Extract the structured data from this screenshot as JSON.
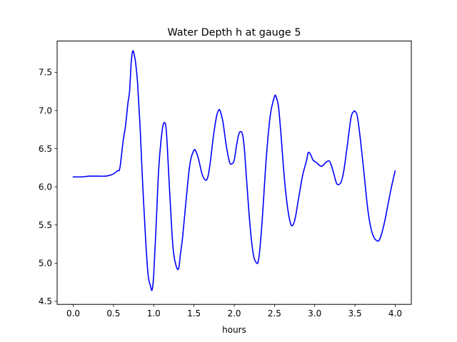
{
  "chart_data": {
    "type": "line",
    "title": "Water Depth h at gauge 5",
    "xlabel": "hours",
    "ylabel": "",
    "xlim": [
      -0.2,
      4.2
    ],
    "ylim": [
      4.46,
      7.91
    ],
    "xticks": [
      0.0,
      0.5,
      1.0,
      1.5,
      2.0,
      2.5,
      3.0,
      3.5,
      4.0
    ],
    "xtick_labels": [
      "0.0",
      "0.5",
      "1.0",
      "1.5",
      "2.0",
      "2.5",
      "3.0",
      "3.5",
      "4.0"
    ],
    "yticks": [
      4.5,
      5.0,
      5.5,
      6.0,
      6.5,
      7.0,
      7.5
    ],
    "ytick_labels": [
      "4.5",
      "5.0",
      "5.5",
      "6.0",
      "6.5",
      "7.0",
      "7.5"
    ],
    "grid": false,
    "series": [
      {
        "color": "#0000ff",
        "x": [
          0.0,
          0.1,
          0.2,
          0.3,
          0.4,
          0.45,
          0.5,
          0.55,
          0.58,
          0.62,
          0.65,
          0.68,
          0.7,
          0.72,
          0.74,
          0.76,
          0.78,
          0.8,
          0.83,
          0.86,
          0.9,
          0.93,
          0.96,
          0.98,
          1.0,
          1.03,
          1.06,
          1.09,
          1.12,
          1.15,
          1.17,
          1.2,
          1.24,
          1.28,
          1.31,
          1.33,
          1.36,
          1.4,
          1.45,
          1.5,
          1.53,
          1.56,
          1.6,
          1.64,
          1.67,
          1.7,
          1.74,
          1.78,
          1.81,
          1.83,
          1.86,
          1.9,
          1.94,
          1.97,
          2.0,
          2.03,
          2.06,
          2.09,
          2.11,
          2.13,
          2.16,
          2.2,
          2.24,
          2.28,
          2.3,
          2.32,
          2.35,
          2.4,
          2.45,
          2.5,
          2.52,
          2.55,
          2.58,
          2.62,
          2.66,
          2.7,
          2.73,
          2.76,
          2.8,
          2.85,
          2.9,
          2.92,
          2.95,
          2.98,
          3.02,
          3.06,
          3.09,
          3.12,
          3.15,
          3.18,
          3.2,
          3.23,
          3.27,
          3.3,
          3.33,
          3.36,
          3.4,
          3.45,
          3.48,
          3.5,
          3.53,
          3.57,
          3.62,
          3.66,
          3.7,
          3.74,
          3.78,
          3.8,
          3.83,
          3.87,
          3.92,
          3.96,
          4.0
        ],
        "y": [
          6.13,
          6.13,
          6.14,
          6.14,
          6.14,
          6.15,
          6.17,
          6.21,
          6.25,
          6.6,
          6.8,
          7.1,
          7.25,
          7.62,
          7.78,
          7.72,
          7.58,
          7.35,
          6.8,
          6.1,
          5.3,
          4.85,
          4.7,
          4.65,
          4.85,
          5.5,
          6.2,
          6.6,
          6.82,
          6.8,
          6.5,
          5.9,
          5.2,
          4.96,
          4.93,
          5.1,
          5.35,
          5.8,
          6.3,
          6.48,
          6.45,
          6.35,
          6.17,
          6.09,
          6.12,
          6.3,
          6.65,
          6.92,
          7.01,
          6.98,
          6.85,
          6.55,
          6.33,
          6.3,
          6.35,
          6.55,
          6.7,
          6.72,
          6.65,
          6.45,
          6.0,
          5.45,
          5.1,
          5.0,
          5.03,
          5.2,
          5.6,
          6.4,
          6.95,
          7.18,
          7.18,
          7.05,
          6.7,
          6.15,
          5.75,
          5.52,
          5.5,
          5.6,
          5.85,
          6.15,
          6.35,
          6.45,
          6.42,
          6.35,
          6.32,
          6.28,
          6.27,
          6.3,
          6.33,
          6.34,
          6.3,
          6.2,
          6.05,
          6.03,
          6.07,
          6.2,
          6.5,
          6.9,
          6.98,
          6.99,
          6.92,
          6.6,
          6.1,
          5.7,
          5.45,
          5.33,
          5.29,
          5.3,
          5.38,
          5.55,
          5.82,
          6.03,
          6.21
        ]
      }
    ]
  }
}
